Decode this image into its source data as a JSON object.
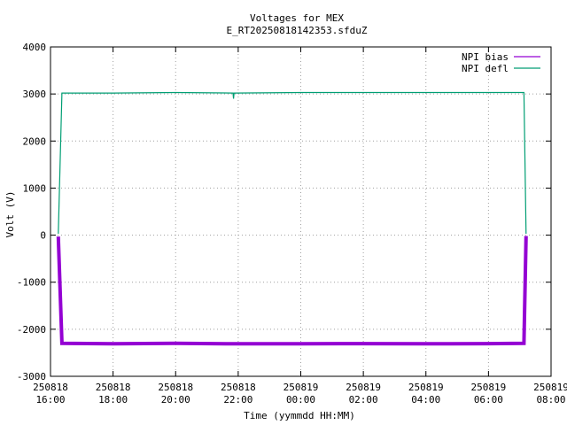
{
  "chart_data": {
    "type": "line",
    "title": "Voltages for MEX",
    "subtitle": "E_RT20250818142353.sfduZ",
    "xlabel": "Time (yymmdd HH:MM)",
    "ylabel": "Volt (V)",
    "xlim": [
      "250818 16:00",
      "250819 08:00"
    ],
    "ylim": [
      -3000,
      4000
    ],
    "yticks": [
      "-3000",
      "-2000",
      "-1000",
      "0",
      "1000",
      "2000",
      "3000",
      "4000"
    ],
    "xticks": [
      {
        "date": "250818",
        "time": "16:00"
      },
      {
        "date": "250818",
        "time": "18:00"
      },
      {
        "date": "250818",
        "time": "20:00"
      },
      {
        "date": "250818",
        "time": "22:00"
      },
      {
        "date": "250819",
        "time": "00:00"
      },
      {
        "date": "250819",
        "time": "02:00"
      },
      {
        "date": "250819",
        "time": "04:00"
      },
      {
        "date": "250819",
        "time": "06:00"
      },
      {
        "date": "250819",
        "time": "08:00"
      }
    ],
    "grid": true,
    "legend_position": "top-right",
    "series": [
      {
        "name": "NPI bias",
        "color": "#9400d3",
        "points": [
          [
            "250818 16:15",
            -30
          ],
          [
            "250818 16:22",
            -2300
          ],
          [
            "250818 18:00",
            -2310
          ],
          [
            "250818 20:00",
            -2300
          ],
          [
            "250818 22:00",
            -2310
          ],
          [
            "250819 00:00",
            -2310
          ],
          [
            "250819 02:00",
            -2305
          ],
          [
            "250819 04:00",
            -2310
          ],
          [
            "250819 06:00",
            -2305
          ],
          [
            "250819 07:08",
            -2300
          ],
          [
            "250819 07:12",
            -20
          ]
        ]
      },
      {
        "name": "NPI defl",
        "color": "#009e73",
        "points": [
          [
            "250818 16:15",
            30
          ],
          [
            "250818 16:22",
            3020
          ],
          [
            "250818 18:00",
            3020
          ],
          [
            "250818 20:00",
            3030
          ],
          [
            "250818 21:50",
            3020
          ],
          [
            "250818 21:51",
            2900
          ],
          [
            "250818 21:52",
            3020
          ],
          [
            "250819 00:00",
            3030
          ],
          [
            "250819 02:00",
            3030
          ],
          [
            "250819 04:00",
            3030
          ],
          [
            "250819 06:00",
            3030
          ],
          [
            "250819 07:08",
            3030
          ],
          [
            "250819 07:12",
            30
          ]
        ]
      }
    ]
  }
}
